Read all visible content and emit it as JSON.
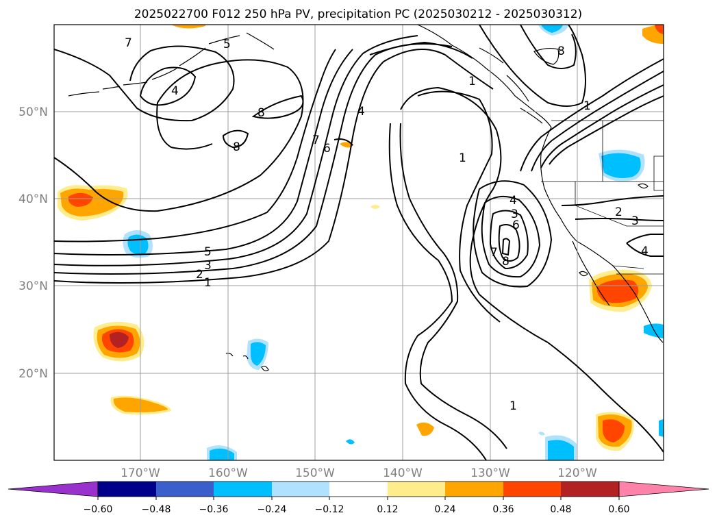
{
  "title": "2025022700 F012 250 hPa PV, precipitation PC (2025030212 - 2025030312)",
  "lat_labels": [
    "50°N",
    "40°N",
    "30°N",
    "20°N"
  ],
  "lon_labels": [
    "170°W",
    "160°W",
    "150°W",
    "140°W",
    "130°W",
    "120°W"
  ],
  "colorbar": {
    "colors": [
      "#9932cc",
      "#00008b",
      "#3a5fcd",
      "#00bfff",
      "#b0e2ff",
      "#ffffff",
      "#ffec8b",
      "#ffa500",
      "#ff4500",
      "#b22222",
      "#ff82ab"
    ],
    "tick_labels": [
      "−0.60",
      "−0.48",
      "−0.36",
      "−0.24",
      "−0.12",
      "0.12",
      "0.24",
      "0.36",
      "0.48",
      "0.60"
    ],
    "tick_values": [
      -0.6,
      -0.48,
      -0.36,
      -0.24,
      -0.12,
      0.12,
      0.24,
      0.36,
      0.48,
      0.6
    ],
    "extend": "both"
  },
  "contour_labels": [
    "7",
    "5",
    "4",
    "8",
    "8",
    "7",
    "6",
    "4",
    "1",
    "1",
    "8",
    "5",
    "3",
    "2",
    "1",
    "4",
    "3",
    "6",
    "7",
    "8",
    "2",
    "3",
    "4",
    "1"
  ]
}
